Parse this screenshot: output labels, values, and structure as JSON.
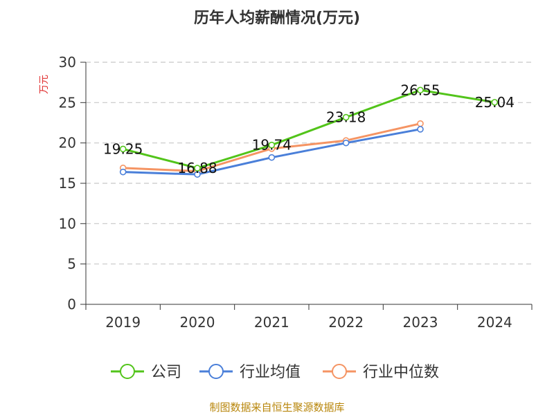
{
  "chart_data": {
    "type": "line",
    "title": "历年人均薪酬情况(万元)",
    "ylabel": "万元",
    "categories": [
      "2019",
      "2020",
      "2021",
      "2022",
      "2023",
      "2024"
    ],
    "ylim": [
      0,
      30
    ],
    "yticks": [
      "0",
      "5",
      "10",
      "15",
      "20",
      "25",
      "30"
    ],
    "grid": true,
    "legend_position": "bottom",
    "series": [
      {
        "name": "公司",
        "color": "#52c41a",
        "values": [
          19.25,
          16.88,
          19.74,
          23.18,
          26.55,
          25.04
        ],
        "labels": [
          "19.25",
          "16.88",
          "19.74",
          "23.18",
          "26.55",
          "25.04"
        ]
      },
      {
        "name": "行业均值",
        "color": "#4a7fd9",
        "values": [
          16.4,
          16.1,
          18.2,
          20.0,
          21.7,
          null
        ]
      },
      {
        "name": "行业中位数",
        "color": "#f59463",
        "values": [
          16.9,
          16.5,
          19.3,
          20.3,
          22.4,
          null
        ]
      }
    ]
  },
  "footer": {
    "source": "制图数据来自恒生聚源数据库"
  }
}
